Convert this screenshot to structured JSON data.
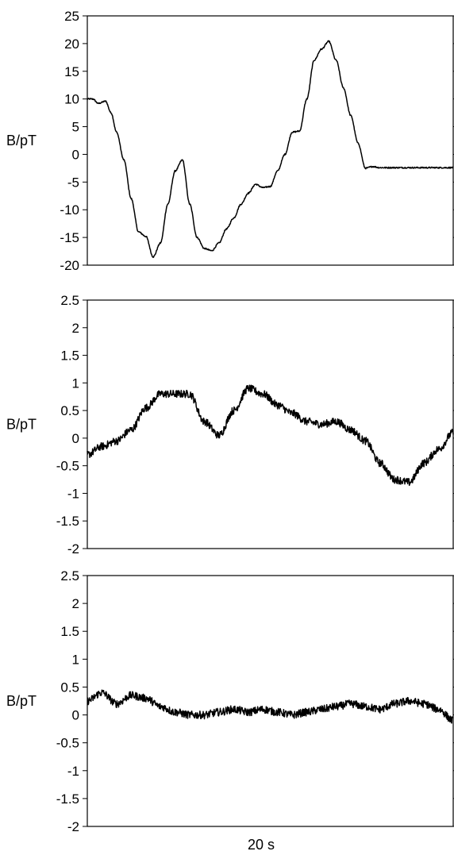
{
  "chart_data": [
    {
      "type": "line",
      "ylabel": "B/pT",
      "ylim": [
        -20,
        25
      ],
      "yticks": [
        "25",
        "20",
        "15",
        "10",
        "5",
        "0",
        "-5",
        "-10",
        "-15",
        "-20"
      ],
      "noise": 0.12,
      "series": [
        {
          "x": [
            0.0,
            0.3,
            0.6,
            1.0,
            1.3,
            1.6,
            2.0,
            2.4,
            2.8,
            3.2,
            3.6,
            4.0,
            4.4,
            4.8,
            5.2,
            5.6,
            6.0,
            6.4,
            6.8,
            7.2,
            7.6,
            8.0,
            8.4,
            8.8,
            9.2,
            9.6,
            10.0,
            10.4,
            10.8,
            11.2,
            11.6,
            12.0,
            12.4,
            12.8,
            13.2,
            13.6,
            14.0,
            14.4,
            14.8,
            15.2,
            15.6,
            16.0,
            16.4,
            16.8,
            17.2,
            17.6,
            18.0,
            18.4,
            18.8,
            19.2,
            19.6,
            20.0
          ],
          "values": [
            10,
            10,
            9.2,
            9.6,
            7.5,
            4,
            -1,
            -8,
            -14,
            -14.8,
            -18.5,
            -16,
            -9,
            -3,
            -1,
            -9,
            -15,
            -17,
            -17.4,
            -16,
            -13.5,
            -11.5,
            -9,
            -7,
            -5.4,
            -6,
            -5.8,
            -3,
            0,
            4,
            4.2,
            10,
            17,
            19,
            20.4,
            17,
            12,
            7,
            2,
            -2.5,
            -2.2,
            -2.4,
            -2.4,
            -2.4,
            -2.4,
            -2.4,
            -2.4,
            -2.4,
            -2.4,
            -2.4,
            -2.4,
            -2.4
          ]
        }
      ]
    },
    {
      "type": "line",
      "ylabel": "B/pT",
      "ylim": [
        -2,
        2.5
      ],
      "yticks": [
        "2.5",
        "2",
        "1.5",
        "1",
        "0.5",
        "0",
        "-0.5",
        "-1",
        "-1.5",
        "-2"
      ],
      "noise": 0.07,
      "series": [
        {
          "x": [
            0.0,
            0.8,
            1.6,
            2.4,
            3.2,
            4.0,
            4.8,
            5.6,
            6.4,
            7.2,
            8.0,
            8.8,
            9.6,
            10.4,
            11.2,
            12.0,
            12.8,
            13.6,
            14.4,
            15.2,
            16.0,
            16.8,
            17.6,
            18.4,
            19.2,
            20.0
          ],
          "values": [
            -0.3,
            -0.15,
            -0.05,
            0.15,
            0.55,
            0.8,
            0.8,
            0.8,
            0.3,
            0.05,
            0.5,
            0.9,
            0.8,
            0.6,
            0.45,
            0.3,
            0.25,
            0.3,
            0.15,
            -0.05,
            -0.45,
            -0.75,
            -0.8,
            -0.45,
            -0.2,
            0.1
          ]
        }
      ]
    },
    {
      "type": "line",
      "ylabel": "B/pT",
      "ylim": [
        -2,
        2.5
      ],
      "yticks": [
        "2.5",
        "2",
        "1.5",
        "1",
        "0.5",
        "0",
        "-0.5",
        "-1",
        "-1.5",
        "-2"
      ],
      "noise": 0.07,
      "series": [
        {
          "x": [
            0.0,
            0.8,
            1.6,
            2.4,
            3.2,
            4.0,
            4.8,
            5.6,
            6.4,
            7.2,
            8.0,
            8.8,
            9.6,
            10.4,
            11.2,
            12.0,
            12.8,
            13.6,
            14.4,
            15.2,
            16.0,
            16.8,
            17.6,
            18.4,
            19.2,
            20.0
          ],
          "values": [
            0.25,
            0.4,
            0.2,
            0.35,
            0.3,
            0.15,
            0.05,
            0.0,
            0.0,
            0.05,
            0.1,
            0.05,
            0.1,
            0.05,
            0.0,
            0.05,
            0.1,
            0.15,
            0.2,
            0.15,
            0.1,
            0.2,
            0.25,
            0.2,
            0.1,
            -0.1
          ]
        }
      ]
    }
  ],
  "xlabel": "20 s",
  "xlim": [
    0,
    20
  ]
}
